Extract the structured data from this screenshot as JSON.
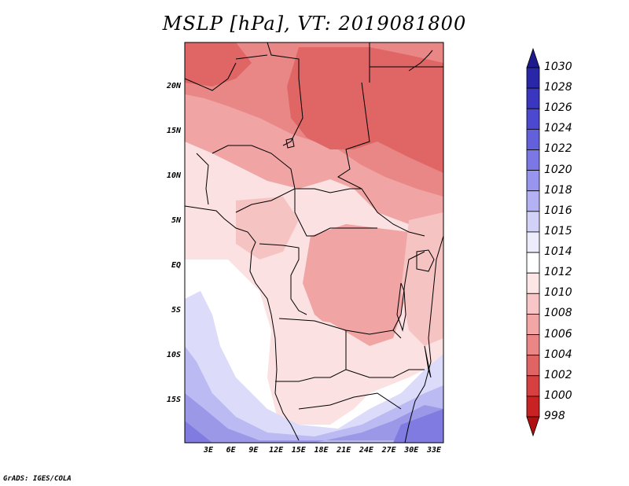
{
  "title": "MSLP [hPa], VT: 2019081800",
  "footer": "GrADS: IGES/COLA",
  "lat_labels": [
    "20N",
    "15N",
    "10N",
    "5N",
    "EQ",
    "5S",
    "10S",
    "15S"
  ],
  "lon_labels": [
    "3E",
    "6E",
    "9E",
    "12E",
    "15E",
    "18E",
    "21E",
    "24E",
    "27E",
    "30E",
    "33E"
  ],
  "colorbar": {
    "labels": [
      "1030",
      "1028",
      "1026",
      "1024",
      "1022",
      "1020",
      "1018",
      "1016",
      "1015",
      "1014",
      "1012",
      "1010",
      "1008",
      "1006",
      "1004",
      "1002",
      "1000",
      "998"
    ],
    "colors": [
      "#1e1a8c",
      "#2a26a8",
      "#3a36c0",
      "#4c48d0",
      "#6360dc",
      "#7b78e6",
      "#9895ee",
      "#b4b2f4",
      "#d2d1f8",
      "#ececfc",
      "#ffffff",
      "#fde6e6",
      "#f8c6c6",
      "#f2a6a6",
      "#ea8686",
      "#e06464",
      "#d64040",
      "#c82222",
      "#b01010"
    ]
  },
  "map": {
    "lon_range": [
      0,
      35
    ],
    "lat_range": [
      -20,
      25
    ],
    "colors": {
      "very_low": "#e06666",
      "low": "#e98686",
      "mid_low": "#f0a4a4",
      "mid": "#f6c3c3",
      "mid_high": "#fbe1e1",
      "neutral": "#ffffff",
      "high1": "#dcdcfa",
      "high2": "#bcbaf2",
      "high3": "#9b98e8",
      "high4": "#7f7be0"
    }
  }
}
